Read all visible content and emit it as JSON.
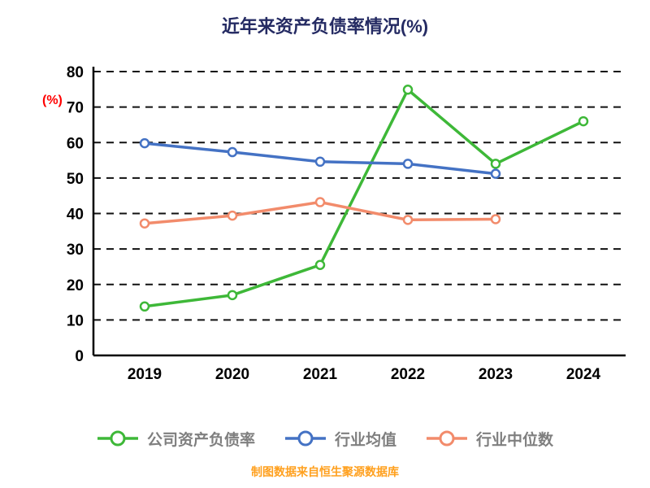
{
  "chart_data": {
    "type": "line",
    "title": "近年来资产负债率情况(%)",
    "ylabel": "(%)",
    "footer": "制图数据来自恒生聚源数据库",
    "x": [
      "2019",
      "2020",
      "2021",
      "2022",
      "2023",
      "2024"
    ],
    "ylim": [
      0,
      80
    ],
    "ytick_step": 10,
    "grid": "dashed-horizontal",
    "legend_position": "bottom",
    "colors": {
      "title": "#252B63",
      "ylabel": "#FF0000",
      "footer": "#FFA01E",
      "legend_text": "#7F7F7F",
      "gridline": "#111111"
    },
    "series": [
      {
        "name": "公司资产负债率",
        "color": "#3EB838",
        "values": [
          13.8,
          17.0,
          25.5,
          74.9,
          54.0,
          66.0
        ]
      },
      {
        "name": "行业均值",
        "color": "#4472C4",
        "values": [
          59.8,
          57.3,
          54.6,
          54.0,
          51.2,
          null
        ]
      },
      {
        "name": "行业中位数",
        "color": "#F28B6B",
        "values": [
          37.2,
          39.4,
          43.2,
          38.2,
          38.4,
          null
        ]
      }
    ]
  }
}
